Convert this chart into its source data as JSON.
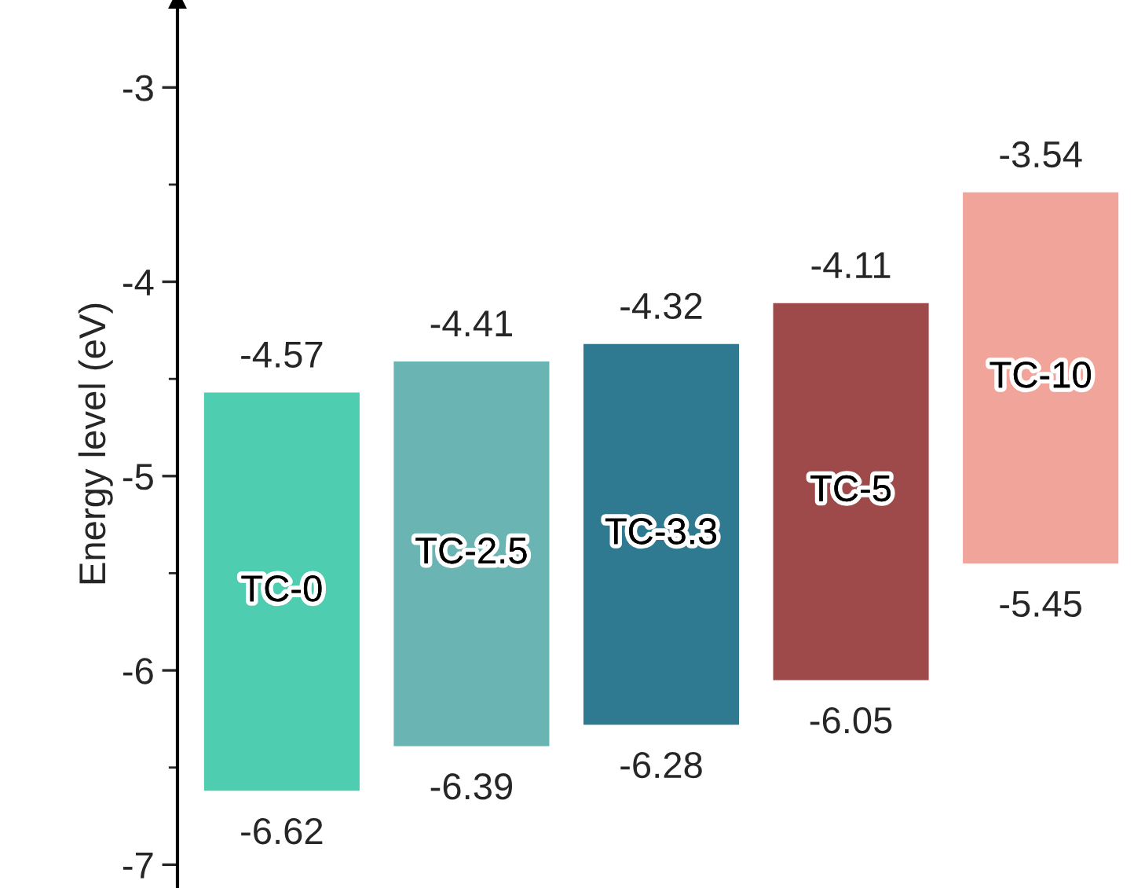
{
  "chart_data": {
    "type": "bar",
    "ylabel": "Energy level (eV)",
    "categories": [
      "TC-0",
      "TC-2.5",
      "TC-3.3",
      "TC-5",
      "TC-10"
    ],
    "base": [
      -6.62,
      -6.39,
      -6.28,
      -6.05,
      -5.45
    ],
    "values": [
      2.05,
      1.98,
      1.96,
      1.94,
      1.91
    ],
    "colors": [
      "#4ecdb0",
      "#6ab4b4",
      "#2f7a90",
      "#9e4a4a",
      "#f0a49a"
    ],
    "ylim": [
      -7.12,
      -2.55
    ],
    "yticks": [
      -7,
      -6,
      -5,
      -4,
      -3
    ],
    "grid": false,
    "annotations": [
      {
        "text": "-4.57",
        "x": "TC-0",
        "y": -4.57
      },
      {
        "text": "-6.62",
        "x": "TC-0",
        "y": -6.62
      },
      {
        "text": "-4.41",
        "x": "TC-2.5",
        "y": -4.41
      },
      {
        "text": "-6.39",
        "x": "TC-2.5",
        "y": -6.39
      },
      {
        "text": "-4.32",
        "x": "TC-3.3",
        "y": -4.32
      },
      {
        "text": "-6.28",
        "x": "TC-3.3",
        "y": -6.28
      },
      {
        "text": "-4.11",
        "x": "TC-5",
        "y": -4.11
      },
      {
        "text": "-6.05",
        "x": "TC-5",
        "y": -6.05
      },
      {
        "text": "-3.54",
        "x": "TC-10",
        "y": -3.54
      },
      {
        "text": "-5.45",
        "x": "TC-10",
        "y": -5.45
      }
    ]
  }
}
